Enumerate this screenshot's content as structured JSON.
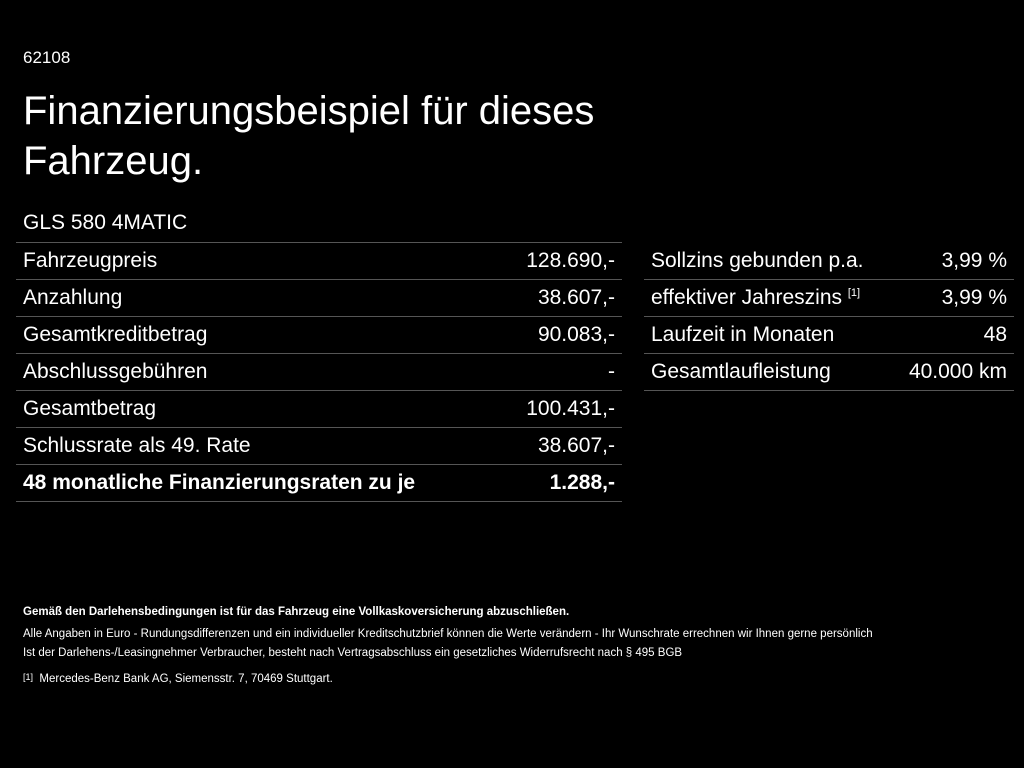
{
  "code": "62108",
  "title": "Finanzierungsbeispiel für dieses Fahrzeug.",
  "model": "GLS 580 4MATIC",
  "left_table": [
    {
      "label": "Fahrzeugpreis",
      "value": "128.690,-"
    },
    {
      "label": "Anzahlung",
      "value": "38.607,-"
    },
    {
      "label": "Gesamtkreditbetrag",
      "value": "90.083,-"
    },
    {
      "label": "Abschlussgebühren",
      "value": "-"
    },
    {
      "label": "Gesamtbetrag",
      "value": "100.431,-"
    },
    {
      "label": "Schlussrate als 49. Rate",
      "value": "38.607,-"
    },
    {
      "label": "48 monatliche Finanzierungsraten zu je",
      "value": "1.288,-"
    }
  ],
  "right_table": [
    {
      "label": "Sollzins gebunden p.a.",
      "value": "3,99 %"
    },
    {
      "label": "effektiver Jahreszins",
      "sup": "[1]",
      "value": "3,99 %"
    },
    {
      "label": "Laufzeit in Monaten",
      "value": "48"
    },
    {
      "label": "Gesamtlaufleistung",
      "value": "40.000 km"
    }
  ],
  "footer": {
    "bold": "Gemäß den Darlehensbedingungen ist für das Fahrzeug eine Vollkaskoversicherung abzuschließen.",
    "line1": "Alle Angaben in Euro - Rundungsdifferenzen und ein individueller Kreditschutzbrief können die Werte verändern - Ihr Wunschrate errechnen wir Ihnen gerne persönlich",
    "line2": "Ist der Darlehens-/Leasingnehmer Verbraucher, besteht nach Vertragsabschluss ein gesetzliches Widerrufsrecht nach § 495 BGB",
    "note_mark": "[1]",
    "note": "Mercedes-Benz Bank AG, Siemensstr. 7, 70469 Stuttgart."
  }
}
